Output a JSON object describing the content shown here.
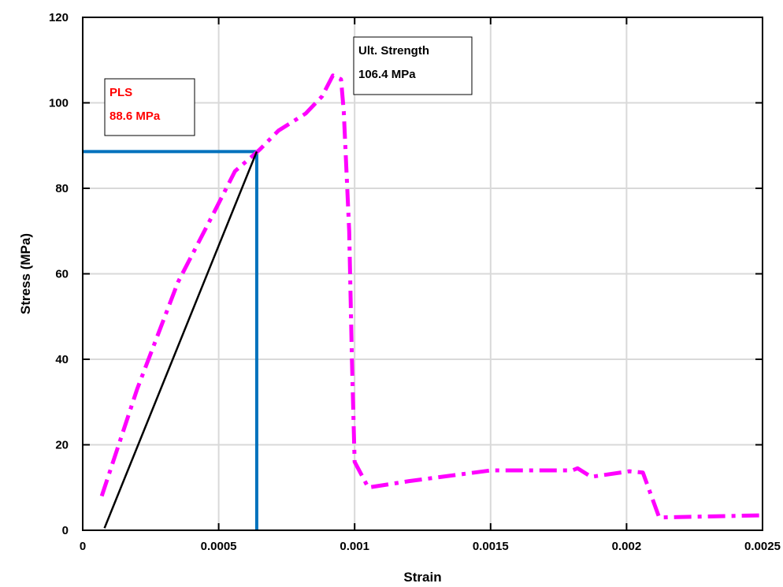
{
  "chart_data": {
    "type": "line",
    "xlabel": "Strain",
    "ylabel": "Stress (MPa)",
    "xlim": [
      0,
      0.0025
    ],
    "ylim": [
      0,
      120
    ],
    "x_ticks": [
      0,
      0.0005,
      0.001,
      0.0015,
      0.002,
      0.0025
    ],
    "x_tick_labels": [
      "0",
      "0.0005",
      "0.001",
      "0.0015",
      "0.002",
      "0.0025"
    ],
    "y_ticks": [
      0,
      20,
      40,
      60,
      80,
      100,
      120
    ],
    "y_tick_labels": [
      "0",
      "20",
      "40",
      "60",
      "80",
      "100",
      "120"
    ],
    "grid": true,
    "series": [
      {
        "color": "#ff00ff",
        "style": "dash-dot",
        "points": [
          [
            7e-05,
            8
          ],
          [
            0.0002,
            33
          ],
          [
            0.00035,
            58
          ],
          [
            0.00048,
            74
          ],
          [
            0.00056,
            84
          ],
          [
            0.00065,
            89
          ],
          [
            0.00072,
            93.5
          ],
          [
            0.00082,
            97.5
          ],
          [
            0.00088,
            101.5
          ],
          [
            0.00092,
            106.4
          ],
          [
            0.00095,
            105.5
          ],
          [
            0.00096,
            98
          ],
          [
            0.00098,
            70
          ],
          [
            0.00099,
            40
          ],
          [
            0.001,
            16
          ],
          [
            0.00105,
            10
          ],
          [
            0.0012,
            11.5
          ],
          [
            0.0015,
            14
          ],
          [
            0.0018,
            14
          ],
          [
            0.00182,
            14.5
          ],
          [
            0.00187,
            12.5
          ],
          [
            0.00201,
            13.8
          ],
          [
            0.00206,
            13.5
          ],
          [
            0.00212,
            3
          ],
          [
            0.0025,
            3.5
          ]
        ]
      },
      {
        "color": "#000000",
        "style": "solid",
        "points": [
          [
            8e-05,
            0.5
          ],
          [
            0.00064,
            88.6
          ]
        ]
      }
    ],
    "reference_lines": {
      "color": "#0072bd",
      "pls_strain": 0.00064,
      "pls_stress": 88.6
    },
    "annotations": [
      {
        "name": "pls",
        "lines": [
          "PLS",
          "88.6 MPa"
        ],
        "color": "#ff0000"
      },
      {
        "name": "ult",
        "lines": [
          "Ult. Strength",
          "106.4 MPa"
        ],
        "color": "#000000"
      }
    ]
  }
}
